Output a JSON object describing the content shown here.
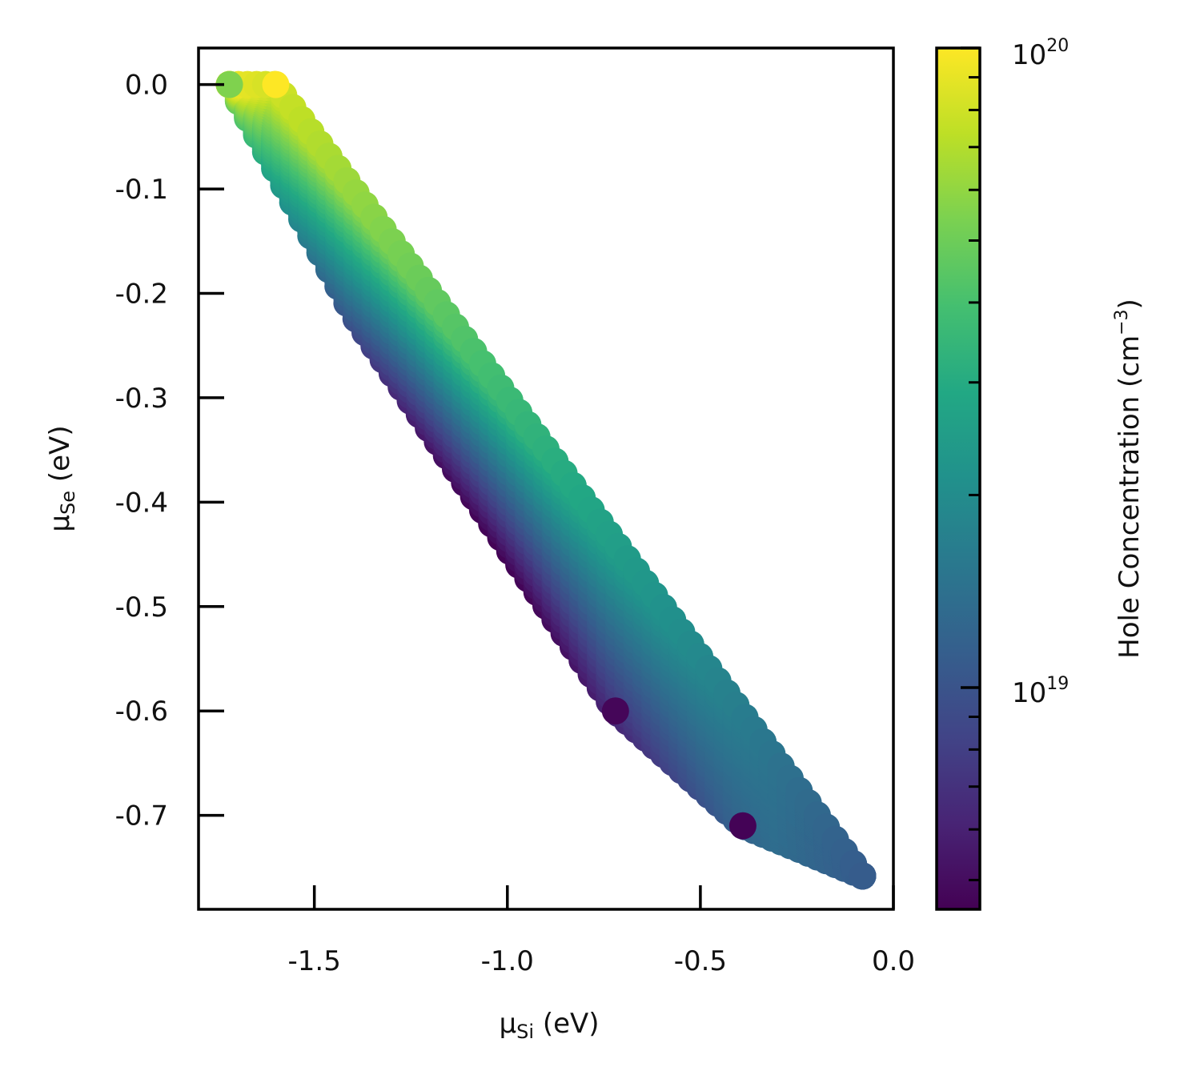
{
  "chart_data": {
    "type": "scatter",
    "title": "",
    "x_axis": {
      "symbol": "μ",
      "subscript": "Si",
      "unit": "(eV)",
      "range": [
        -1.8,
        0.0
      ],
      "ticks": [
        -1.5,
        -1.0,
        -0.5,
        0.0
      ],
      "tick_labels": [
        "-1.5",
        "-1.0",
        "-0.5",
        "0.0"
      ]
    },
    "y_axis": {
      "symbol": "μ",
      "subscript": "Se",
      "unit": "(eV)",
      "range": [
        -0.79,
        0.035
      ],
      "ticks": [
        0.0,
        -0.1,
        -0.2,
        -0.3,
        -0.4,
        -0.5,
        -0.6,
        -0.7
      ],
      "tick_labels": [
        "0.0",
        "-0.1",
        "-0.2",
        "-0.3",
        "-0.4",
        "-0.5",
        "-0.6",
        "-0.7"
      ]
    },
    "colorbar": {
      "label": "Hole Concentration (cm",
      "label_sup": "−3",
      "label_close": ")",
      "scale": "log",
      "range": [
        4.5e+18,
        1e+20
      ],
      "colormap": "viridis",
      "major_ticks": [
        {
          "value": 1e+19,
          "base": "10",
          "exp": "19"
        },
        {
          "value": 1e+20,
          "base": "10",
          "exp": "20"
        }
      ],
      "minor_ticks": [
        5e+18,
        6e+18,
        7e+18,
        8e+18,
        9e+18,
        2e+19,
        3e+19,
        4e+19,
        5e+19,
        6e+19,
        7e+19,
        8e+19,
        9e+19
      ]
    },
    "points_note_key": "points",
    "points": [
      {
        "x": -1.6,
        "y": 0.0,
        "c": 1e+20
      },
      {
        "x": -1.72,
        "y": 0.0,
        "c": 5.5e+19
      },
      {
        "x": -0.72,
        "y": -0.6,
        "c": 4.7e+18
      },
      {
        "x": -0.39,
        "y": -0.71,
        "c": 4.6e+18
      },
      {
        "x": -0.08,
        "y": -0.758,
        "c": 1.1e+19
      }
    ],
    "band": {
      "upper_edge": [
        [
          -1.72,
          0.0
        ],
        [
          -1.6,
          0.0
        ],
        [
          -0.08,
          -0.758
        ]
      ],
      "lower_edge": [
        [
          -1.72,
          0.0
        ],
        [
          -1.4,
          -0.22
        ],
        [
          -0.72,
          -0.6
        ],
        [
          -0.39,
          -0.71
        ],
        [
          -0.08,
          -0.758
        ]
      ]
    },
    "grid": false,
    "legend": "none"
  }
}
